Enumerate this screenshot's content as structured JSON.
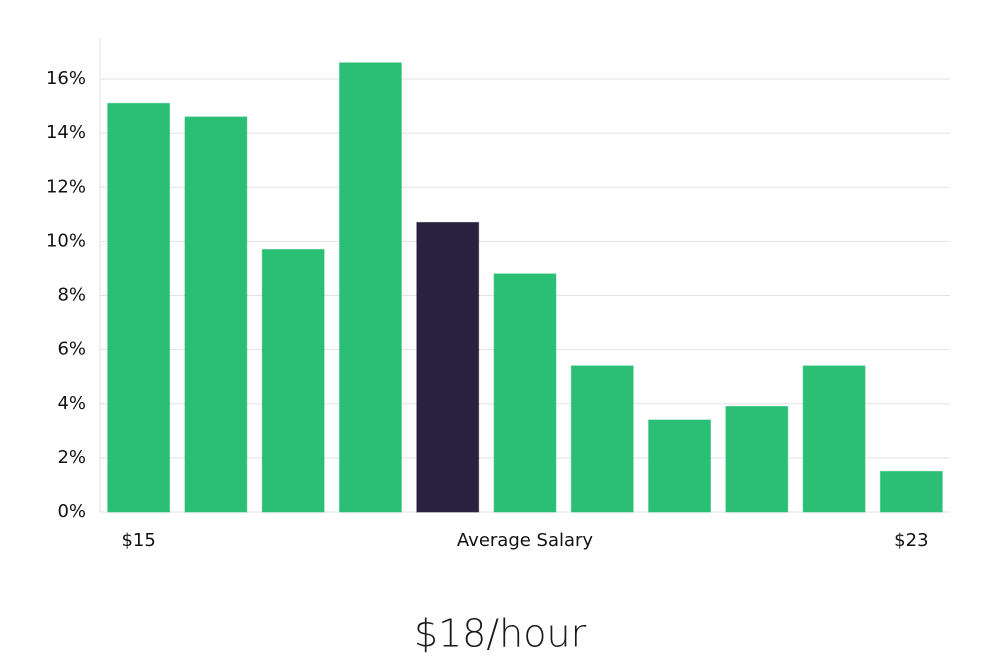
{
  "chart_data": {
    "type": "bar",
    "categories": [
      "$15",
      null,
      null,
      null,
      null,
      null,
      null,
      null,
      null,
      null,
      "$23"
    ],
    "values": [
      15.1,
      14.6,
      9.7,
      16.6,
      10.7,
      8.8,
      5.4,
      3.4,
      3.9,
      5.4,
      1.5
    ],
    "color": "#2bbf76",
    "highlight_color": "#29213f",
    "highlight_index": 4,
    "xlabel": "Average Salary",
    "ylim": [
      0,
      17.5
    ],
    "yticks": [
      {
        "value": 0,
        "label": "0%"
      },
      {
        "value": 2,
        "label": "2%"
      },
      {
        "value": 4,
        "label": "4%"
      },
      {
        "value": 6,
        "label": "6%"
      },
      {
        "value": 8,
        "label": "8%"
      },
      {
        "value": 10,
        "label": "10%"
      },
      {
        "value": 12,
        "label": "12%"
      },
      {
        "value": 14,
        "label": "14%"
      },
      {
        "value": 16,
        "label": "16%"
      }
    ],
    "grid": true,
    "footer": "$18/hour"
  }
}
